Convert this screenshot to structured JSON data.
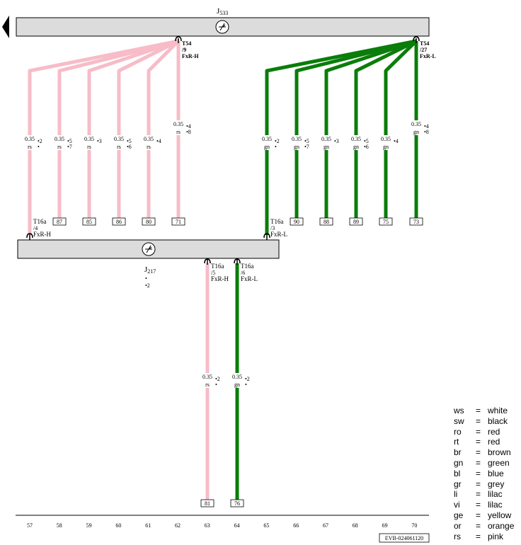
{
  "components": {
    "top": {
      "name": "J",
      "sub": "533"
    },
    "bottom": {
      "name": "J",
      "sub": "217",
      "notes": [
        "•",
        "•2"
      ]
    }
  },
  "connectors": {
    "top_h": [
      "T54",
      "/9",
      "FxR-H"
    ],
    "top_l": [
      "T54",
      "/27",
      "FxR-L"
    ],
    "mid_left": [
      "T16a",
      "/4",
      "FxR-H"
    ],
    "mid_right": [
      "T16a",
      "/3",
      "FxR-L"
    ],
    "bot_h": [
      "T16a",
      "/5",
      "FxR-H"
    ],
    "bot_l": [
      "T16a",
      "/6",
      "FxR-L"
    ]
  },
  "colors": {
    "pink": "#f7bcc8",
    "green": "#0a7d0a",
    "box": "#dcdcdc"
  },
  "wires": [
    {
      "col": 57,
      "size": "0.35",
      "color": "rs",
      "notes": [
        "•2",
        "•"
      ],
      "term": ""
    },
    {
      "col": 58,
      "size": "0.35",
      "color": "rs",
      "notes": [
        "•5",
        "•7"
      ],
      "term": "87"
    },
    {
      "col": 59,
      "size": "0.35",
      "color": "rs",
      "notes": [
        "•3"
      ],
      "term": "85"
    },
    {
      "col": 60,
      "size": "0.35",
      "color": "rs",
      "notes": [
        "•5",
        "•6"
      ],
      "term": "86"
    },
    {
      "col": 61,
      "size": "0.35",
      "color": "rs",
      "notes": [
        "•4"
      ],
      "term": "80"
    },
    {
      "col": 62,
      "size": "0.35",
      "color": "rs",
      "notes": [
        "•4",
        "•8"
      ],
      "term": "71"
    },
    {
      "col": 65,
      "size": "0.35",
      "color": "gn",
      "notes": [
        "•2",
        "•"
      ],
      "term": ""
    },
    {
      "col": 66,
      "size": "0.35",
      "color": "gn",
      "notes": [
        "•5",
        "•7"
      ],
      "term": "90"
    },
    {
      "col": 67,
      "size": "0.35",
      "color": "gn",
      "notes": [
        "•3"
      ],
      "term": "88"
    },
    {
      "col": 68,
      "size": "0.35",
      "color": "gn",
      "notes": [
        "•5",
        "•6"
      ],
      "term": "89"
    },
    {
      "col": 69,
      "size": "0.35",
      "color": "gn",
      "notes": [
        "•4"
      ],
      "term": "75"
    },
    {
      "col": 70,
      "size": "0.35",
      "color": "gn",
      "notes": [
        "•4",
        "•8"
      ],
      "term": "73"
    },
    {
      "col": 63,
      "size": "0.35",
      "color": "rs",
      "notes": [
        "•2",
        "•"
      ],
      "term": "81"
    },
    {
      "col": 64,
      "size": "0.35",
      "color": "gn",
      "notes": [
        "•2",
        "•"
      ],
      "term": "76"
    }
  ],
  "columns": [
    "57",
    "58",
    "59",
    "60",
    "61",
    "62",
    "63",
    "64",
    "65",
    "66",
    "67",
    "68",
    "69",
    "70"
  ],
  "doc_id": "EVB-024061120",
  "legend": [
    {
      "code": "ws",
      "eq": "=",
      "name": "white"
    },
    {
      "code": "sw",
      "eq": "=",
      "name": "black"
    },
    {
      "code": "ro",
      "eq": "=",
      "name": "red"
    },
    {
      "code": "rt",
      "eq": "=",
      "name": "red"
    },
    {
      "code": "br",
      "eq": "=",
      "name": "brown"
    },
    {
      "code": "gn",
      "eq": "=",
      "name": "green"
    },
    {
      "code": "bl",
      "eq": "=",
      "name": "blue"
    },
    {
      "code": "gr",
      "eq": "=",
      "name": "grey"
    },
    {
      "code": "li",
      "eq": "=",
      "name": "lilac"
    },
    {
      "code": "vi",
      "eq": "=",
      "name": "lilac"
    },
    {
      "code": "ge",
      "eq": "=",
      "name": "yellow"
    },
    {
      "code": "or",
      "eq": "=",
      "name": "orange"
    },
    {
      "code": "rs",
      "eq": "=",
      "name": "pink"
    }
  ]
}
